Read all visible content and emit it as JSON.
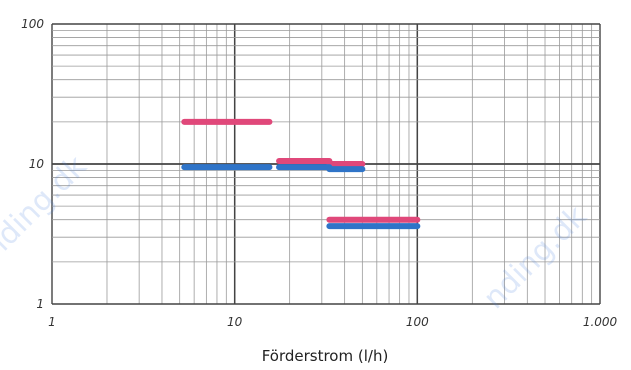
{
  "chart_data": {
    "type": "line",
    "title": "",
    "xlabel": "Förderstrom (l/h)",
    "ylabel": "",
    "x_scale": "log",
    "y_scale": "log",
    "xlim": [
      1,
      1000
    ],
    "ylim": [
      1,
      100
    ],
    "x_ticks": [
      "1",
      "10",
      "100",
      "1.000"
    ],
    "y_ticks": [
      "100",
      "10",
      "1"
    ],
    "grid": true,
    "series": [
      {
        "color": "#e0487a",
        "segments": [
          {
            "x": [
              5.3,
              15.5
            ],
            "y": [
              20,
              20
            ]
          },
          {
            "x": [
              17.5,
              33
            ],
            "y": [
              10.5,
              10.5
            ]
          },
          {
            "x": [
              33,
              50
            ],
            "y": [
              10,
              10
            ]
          },
          {
            "x": [
              33,
              100
            ],
            "y": [
              4.0,
              4.0
            ]
          }
        ]
      },
      {
        "color": "#2f74c8",
        "segments": [
          {
            "x": [
              5.3,
              15.5
            ],
            "y": [
              9.5,
              9.5
            ]
          },
          {
            "x": [
              17.5,
              33
            ],
            "y": [
              9.5,
              9.5
            ]
          },
          {
            "x": [
              33,
              50
            ],
            "y": [
              9.2,
              9.2
            ]
          },
          {
            "x": [
              33,
              100
            ],
            "y": [
              3.6,
              3.6
            ]
          }
        ]
      }
    ]
  },
  "watermark": "nding.dk"
}
